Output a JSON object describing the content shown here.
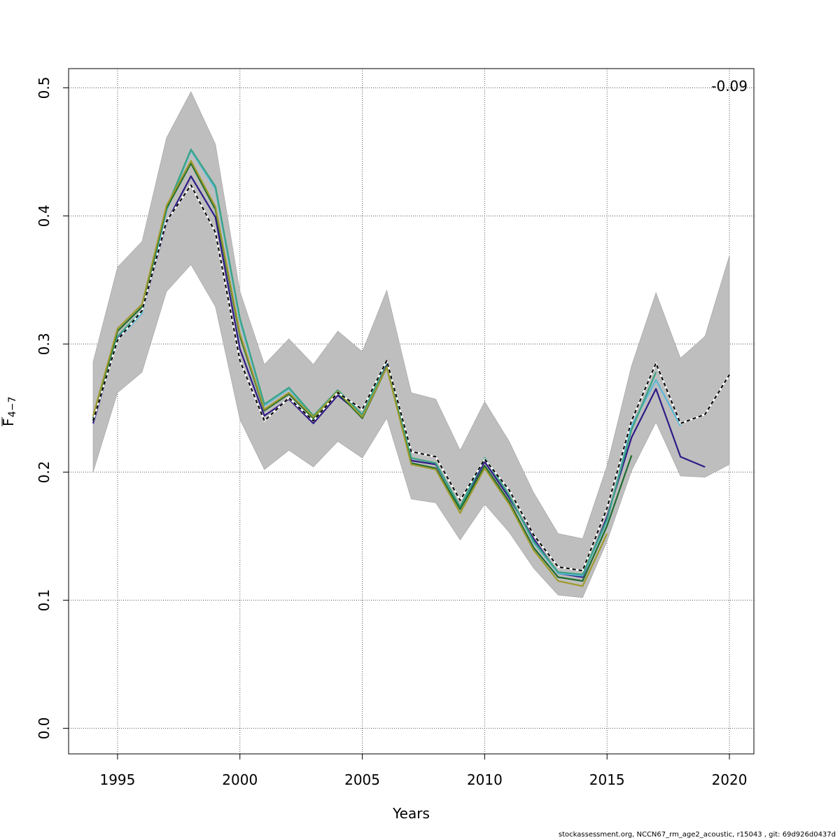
{
  "chart_data": {
    "type": "line",
    "title": "",
    "xlabel": "Years",
    "ylabel_main": "F",
    "ylabel_sub": "4−7",
    "corner_label": "-0.09",
    "xlim": [
      1993,
      2021
    ],
    "ylim": [
      -0.02,
      0.515
    ],
    "x_ticks": [
      1995,
      2000,
      2005,
      2010,
      2015,
      2020
    ],
    "x_tick_labels": [
      "1995",
      "2000",
      "2005",
      "2010",
      "2015",
      "2020"
    ],
    "y_ticks": [
      0.0,
      0.1,
      0.2,
      0.3,
      0.4,
      0.5
    ],
    "y_tick_labels": [
      "0.0",
      "0.1",
      "0.2",
      "0.3",
      "0.4",
      "0.5"
    ],
    "grid": true,
    "band": {
      "name": "confidence interval",
      "color": "#bebebe",
      "x": [
        1994,
        1995,
        1996,
        1997,
        1998,
        1999,
        2000,
        2001,
        2002,
        2003,
        2004,
        2005,
        2006,
        2007,
        2008,
        2009,
        2010,
        2011,
        2012,
        2013,
        2014,
        2015,
        2016,
        2017,
        2018,
        2019,
        2020
      ],
      "lower": [
        0.2,
        0.262,
        0.278,
        0.341,
        0.362,
        0.329,
        0.241,
        0.202,
        0.217,
        0.204,
        0.224,
        0.211,
        0.242,
        0.179,
        0.176,
        0.147,
        0.175,
        0.153,
        0.125,
        0.104,
        0.102,
        0.146,
        0.201,
        0.239,
        0.197,
        0.196,
        0.206
      ],
      "upper": [
        0.286,
        0.36,
        0.38,
        0.461,
        0.497,
        0.456,
        0.341,
        0.284,
        0.304,
        0.284,
        0.31,
        0.294,
        0.342,
        0.262,
        0.257,
        0.217,
        0.255,
        0.224,
        0.184,
        0.152,
        0.148,
        0.205,
        0.283,
        0.34,
        0.289,
        0.306,
        0.369
      ]
    },
    "series": [
      {
        "name": "retro-1",
        "color": "#2e1a86",
        "dashed": false,
        "x": [
          1994,
          1995,
          1996,
          1997,
          1998,
          1999,
          2000,
          2001,
          2002,
          2003,
          2004,
          2005,
          2006,
          2007,
          2008,
          2009,
          2010,
          2011,
          2012,
          2013,
          2014,
          2015,
          2016,
          2017,
          2018,
          2019
        ],
        "values": [
          0.238,
          0.304,
          0.325,
          0.395,
          0.431,
          0.399,
          0.296,
          0.244,
          0.257,
          0.238,
          0.26,
          0.244,
          0.284,
          0.209,
          0.206,
          0.173,
          0.208,
          0.18,
          0.148,
          0.121,
          0.118,
          0.165,
          0.227,
          0.265,
          0.212,
          0.204
        ]
      },
      {
        "name": "retro-2",
        "color": "#5bb8d6",
        "dashed": false,
        "x": [
          1994,
          1995,
          1996,
          1997,
          1998,
          1999,
          2000,
          2001,
          2002,
          2003,
          2004,
          2005,
          2006,
          2007,
          2008,
          2009,
          2010,
          2011,
          2012,
          2013,
          2014,
          2015,
          2016,
          2017,
          2018
        ],
        "values": [
          0.24,
          0.303,
          0.324,
          0.404,
          0.451,
          0.421,
          0.318,
          0.252,
          0.265,
          0.243,
          0.263,
          0.244,
          0.286,
          0.211,
          0.207,
          0.172,
          0.211,
          0.182,
          0.145,
          0.121,
          0.119,
          0.162,
          0.236,
          0.272,
          0.236
        ]
      },
      {
        "name": "retro-3",
        "color": "#3aa384",
        "dashed": false,
        "x": [
          1994,
          1995,
          1996,
          1997,
          1998,
          1999,
          2000,
          2001,
          2002,
          2003,
          2004,
          2005,
          2006,
          2007,
          2008,
          2009,
          2010,
          2011,
          2012,
          2013,
          2014,
          2015,
          2016,
          2017
        ],
        "values": [
          0.241,
          0.306,
          0.326,
          0.406,
          0.452,
          0.423,
          0.32,
          0.253,
          0.266,
          0.244,
          0.264,
          0.245,
          0.286,
          0.211,
          0.207,
          0.173,
          0.211,
          0.182,
          0.146,
          0.122,
          0.12,
          0.163,
          0.233,
          0.278
        ]
      },
      {
        "name": "retro-4",
        "color": "#1e6b2e",
        "dashed": false,
        "x": [
          1994,
          1995,
          1996,
          1997,
          1998,
          1999,
          2000,
          2001,
          2002,
          2003,
          2004,
          2005,
          2006,
          2007,
          2008,
          2009,
          2010,
          2011,
          2012,
          2013,
          2014,
          2015,
          2016
        ],
        "values": [
          0.242,
          0.31,
          0.329,
          0.406,
          0.441,
          0.405,
          0.306,
          0.248,
          0.261,
          0.242,
          0.262,
          0.242,
          0.282,
          0.207,
          0.203,
          0.171,
          0.205,
          0.177,
          0.141,
          0.118,
          0.115,
          0.158,
          0.213
        ]
      },
      {
        "name": "retro-5",
        "color": "#9e9a2c",
        "dashed": false,
        "x": [
          1994,
          1995,
          1996,
          1997,
          1998,
          1999,
          2000,
          2001,
          2002,
          2003,
          2004,
          2005,
          2006,
          2007,
          2008,
          2009,
          2010,
          2011,
          2012,
          2013,
          2014,
          2015
        ],
        "values": [
          0.244,
          0.312,
          0.331,
          0.408,
          0.443,
          0.407,
          0.308,
          0.249,
          0.262,
          0.243,
          0.263,
          0.243,
          0.282,
          0.206,
          0.202,
          0.168,
          0.203,
          0.175,
          0.139,
          0.115,
          0.111,
          0.152
        ]
      },
      {
        "name": "base",
        "color": "#000000",
        "dashed": true,
        "x": [
          1994,
          1995,
          1996,
          1997,
          1998,
          1999,
          2000,
          2001,
          2002,
          2003,
          2004,
          2005,
          2006,
          2007,
          2008,
          2009,
          2010,
          2011,
          2012,
          2013,
          2014,
          2015,
          2016,
          2017,
          2018,
          2019,
          2020
        ],
        "values": [
          0.24,
          0.303,
          0.326,
          0.396,
          0.424,
          0.387,
          0.287,
          0.24,
          0.258,
          0.24,
          0.262,
          0.249,
          0.287,
          0.216,
          0.212,
          0.178,
          0.21,
          0.186,
          0.151,
          0.126,
          0.123,
          0.172,
          0.24,
          0.285,
          0.238,
          0.245,
          0.276
        ]
      }
    ]
  },
  "footer": "stockassessment.org, NCCN67_rm_age2_acoustic, r15043 , git: 69d926d0437d"
}
